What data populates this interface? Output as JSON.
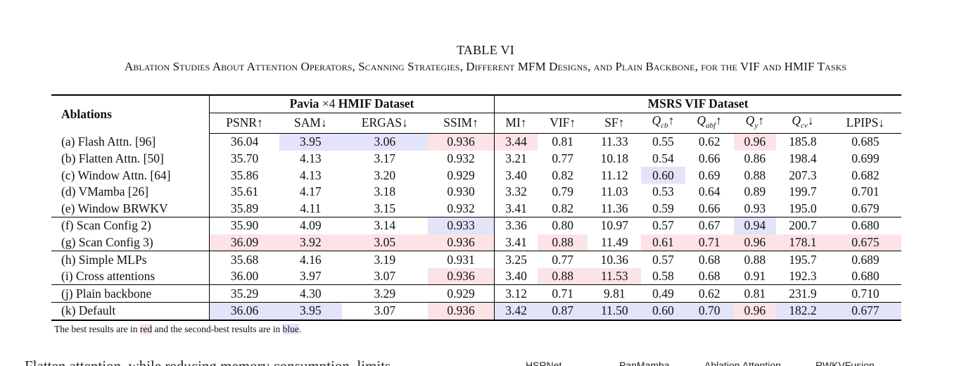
{
  "caption": {
    "label": "TABLE VI",
    "title": "Ablation Studies About Attention Operators, Scanning Strategies, Different MFM Designs, and Plain Backbone, for the VIF and HMIF Tasks"
  },
  "table": {
    "row_header": "Ablations",
    "groups": [
      {
        "prefix": "Pavia ",
        "scale": "×4",
        "suffix": " HMIF Dataset"
      },
      {
        "prefix": "MSRS VIF Dataset",
        "scale": "",
        "suffix": ""
      }
    ],
    "columns": [
      {
        "text": "PSNR↑"
      },
      {
        "text": "SAM↓"
      },
      {
        "text": "ERGAS↓"
      },
      {
        "text": "SSIM↑"
      },
      {
        "text": "MI↑"
      },
      {
        "text": "VIF↑"
      },
      {
        "text": "SF↑"
      },
      {
        "q": "Q",
        "sub": "cb",
        "arrow": "↑"
      },
      {
        "q": "Q",
        "sub": "abf",
        "arrow": "↑"
      },
      {
        "q": "Q",
        "sub": "y",
        "arrow": "↑"
      },
      {
        "q": "Q",
        "sub": "cv",
        "arrow": "↓"
      },
      {
        "text": "LPIPS↓"
      }
    ],
    "rows": [
      {
        "label": "(a) Flash Attn. [96]",
        "values": [
          "36.04",
          "3.95",
          "3.06",
          "0.936",
          "3.44",
          "0.81",
          "11.33",
          "0.55",
          "0.62",
          "0.96",
          "185.8",
          "0.685"
        ],
        "marks": {
          "1": "blue",
          "2": "blue",
          "3": "red",
          "4": "red",
          "9": "red"
        }
      },
      {
        "label": "(b) Flatten Attn. [50]",
        "values": [
          "35.70",
          "4.13",
          "3.17",
          "0.932",
          "3.21",
          "0.77",
          "10.18",
          "0.54",
          "0.66",
          "0.86",
          "198.4",
          "0.699"
        ],
        "marks": {}
      },
      {
        "label": "(c) Window Attn. [64]",
        "values": [
          "35.86",
          "4.13",
          "3.20",
          "0.929",
          "3.40",
          "0.82",
          "11.12",
          "0.60",
          "0.69",
          "0.88",
          "207.3",
          "0.682"
        ],
        "marks": {
          "7": "blue"
        }
      },
      {
        "label": "(d) VMamba [26]",
        "values": [
          "35.61",
          "4.17",
          "3.18",
          "0.930",
          "3.32",
          "0.79",
          "11.03",
          "0.53",
          "0.64",
          "0.89",
          "199.7",
          "0.701"
        ],
        "marks": {}
      },
      {
        "label": "(e) Window BRWKV",
        "values": [
          "35.89",
          "4.11",
          "3.15",
          "0.932",
          "3.41",
          "0.82",
          "11.36",
          "0.59",
          "0.66",
          "0.93",
          "195.0",
          "0.679"
        ],
        "marks": {}
      },
      {
        "label": "(f) Scan Config 2)",
        "values": [
          "35.90",
          "4.09",
          "3.14",
          "0.933",
          "3.36",
          "0.80",
          "10.97",
          "0.57",
          "0.67",
          "0.94",
          "200.7",
          "0.680"
        ],
        "marks": {
          "3": "blue",
          "9": "blue"
        },
        "sep": true
      },
      {
        "label": "(g) Scan Config 3)",
        "values": [
          "36.09",
          "3.92",
          "3.05",
          "0.936",
          "3.41",
          "0.88",
          "11.49",
          "0.61",
          "0.71",
          "0.96",
          "178.1",
          "0.675"
        ],
        "marks": {
          "0": "red",
          "1": "red",
          "2": "red",
          "3": "red",
          "5": "red",
          "7": "red",
          "8": "red",
          "9": "red",
          "10": "red",
          "11": "red"
        }
      },
      {
        "label": "(h) Simple MLPs",
        "values": [
          "35.68",
          "4.16",
          "3.19",
          "0.931",
          "3.25",
          "0.77",
          "10.36",
          "0.57",
          "0.68",
          "0.88",
          "195.7",
          "0.689"
        ],
        "marks": {},
        "sep": true
      },
      {
        "label": "(i) Cross attentions",
        "values": [
          "36.00",
          "3.97",
          "3.07",
          "0.936",
          "3.40",
          "0.88",
          "11.53",
          "0.58",
          "0.68",
          "0.91",
          "192.3",
          "0.680"
        ],
        "marks": {
          "3": "red",
          "5": "red",
          "6": "red"
        }
      },
      {
        "label": "(j) Plain backbone",
        "values": [
          "35.29",
          "4.30",
          "3.29",
          "0.929",
          "3.12",
          "0.71",
          "9.81",
          "0.49",
          "0.62",
          "0.81",
          "231.9",
          "0.710"
        ],
        "marks": {},
        "sep": true
      },
      {
        "label": "(k) Default",
        "values": [
          "36.06",
          "3.95",
          "3.07",
          "0.936",
          "3.42",
          "0.87",
          "11.50",
          "0.60",
          "0.70",
          "0.96",
          "182.2",
          "0.677"
        ],
        "marks": {
          "0": "blue",
          "1": "blue",
          "3": "red",
          "4": "blue",
          "5": "blue",
          "6": "blue",
          "7": "blue",
          "8": "blue",
          "9": "red",
          "10": "blue",
          "11": "blue"
        },
        "sep": true
      }
    ]
  },
  "note": {
    "before": "The best results are in ",
    "red_word": "red",
    "middle": " and the second-best results are in ",
    "blue_word": "blue",
    "after": "."
  },
  "body_text": "Flatten attention, while reducing memory consumption, limits",
  "figure_labels": [
    "HSRNet",
    "PanMamba",
    "Ablation Attention",
    "RWKVFusion"
  ]
}
